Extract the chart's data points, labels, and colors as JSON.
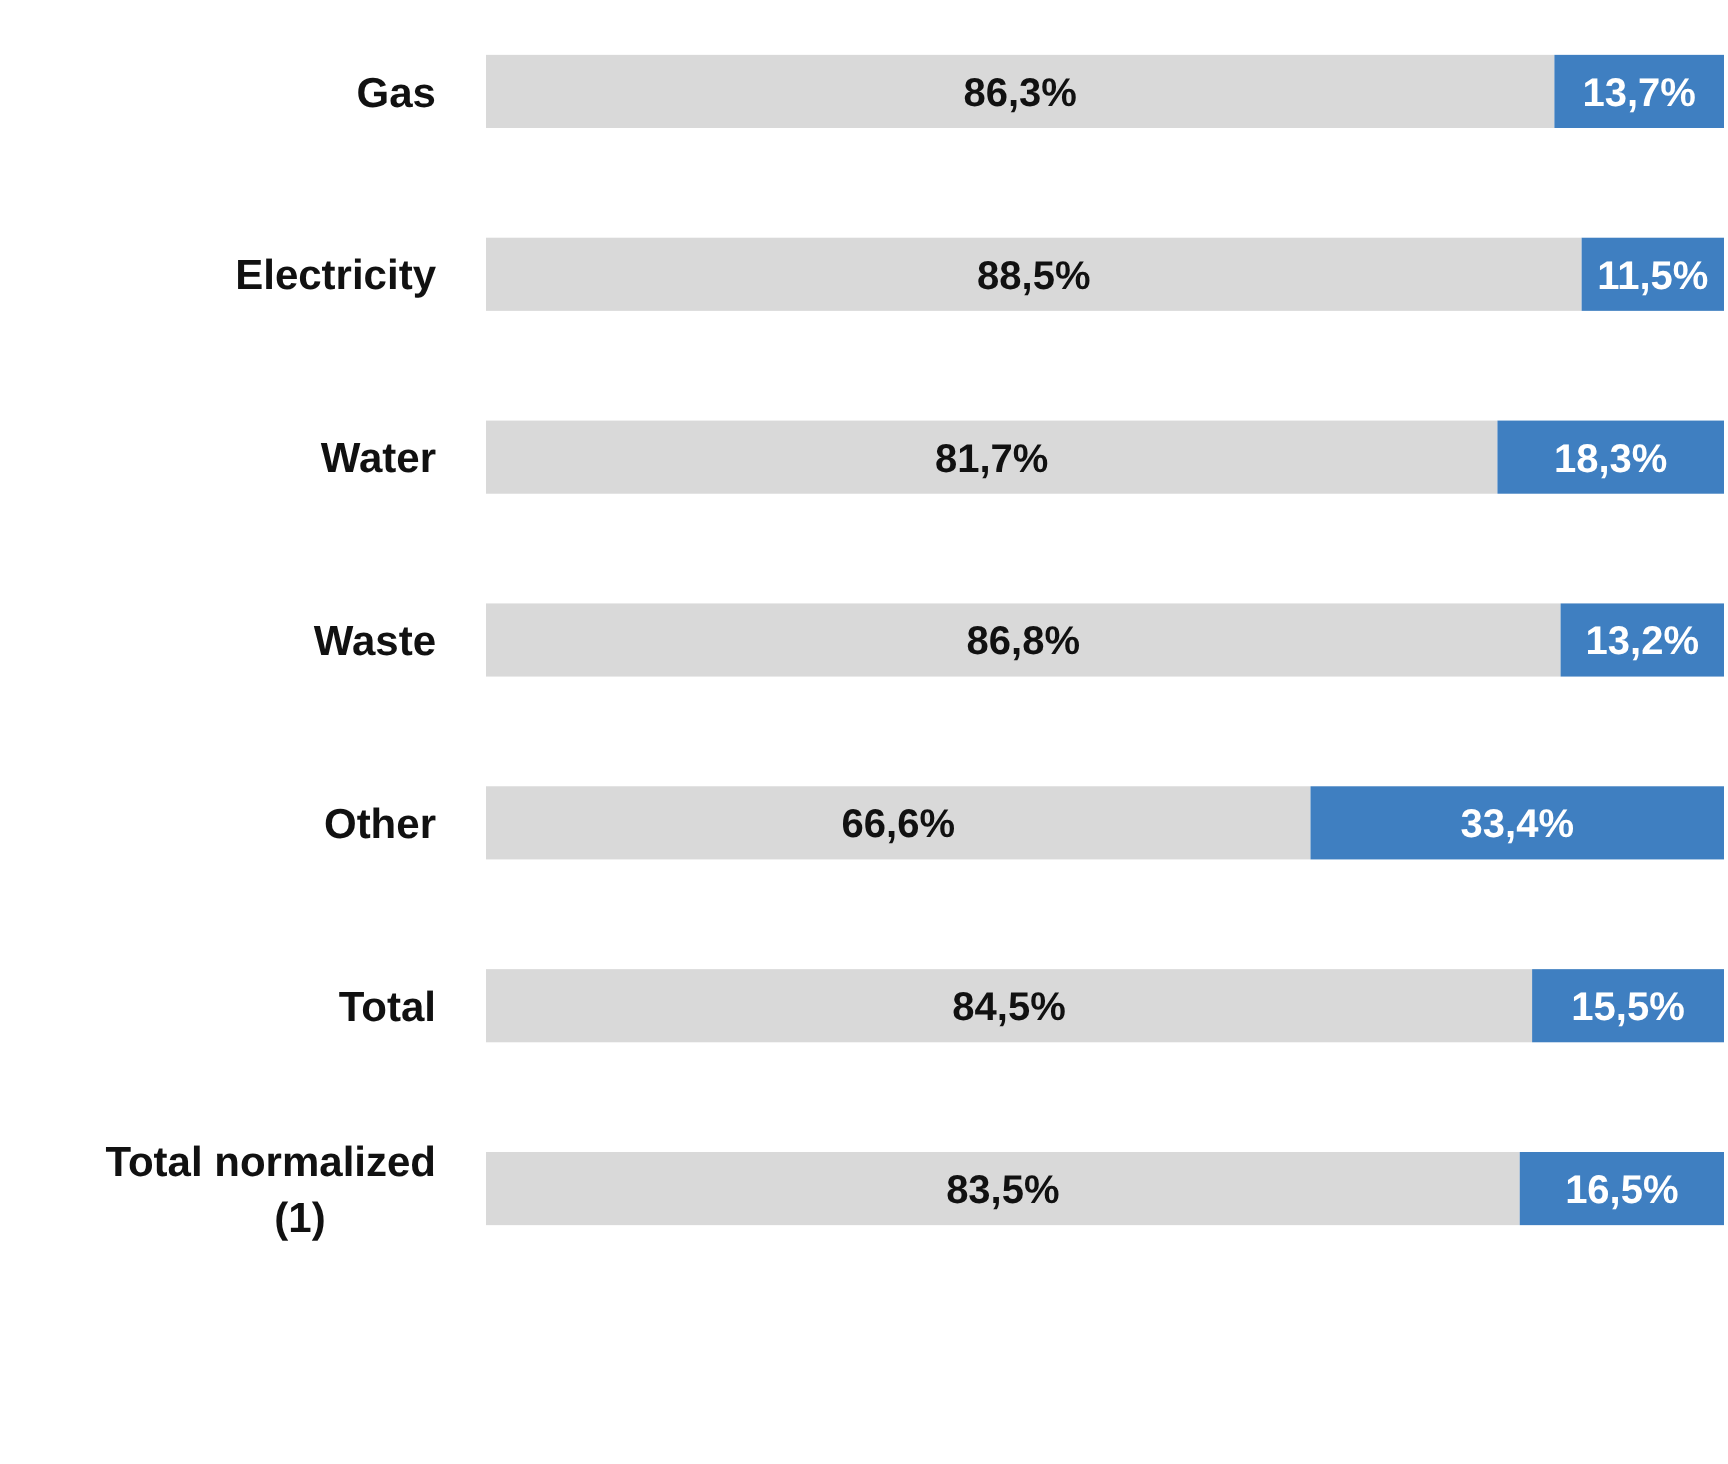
{
  "chart_data": {
    "type": "bar",
    "orientation": "horizontal",
    "stacked": true,
    "categories": [
      "Gas",
      "Electricity",
      "Water",
      "Waste",
      "Other",
      "Total",
      "Total normalized (1)"
    ],
    "series": [
      {
        "color": "#d9d9d9",
        "values": [
          86.3,
          88.5,
          81.7,
          86.8,
          66.6,
          84.5,
          83.5
        ],
        "value_labels": [
          "86,3%",
          "88,5%",
          "81,7%",
          "86,8%",
          "66,6%",
          "84,5%",
          "83,5%"
        ]
      },
      {
        "color": "#3f7fc1",
        "values": [
          13.7,
          11.5,
          18.3,
          13.2,
          33.4,
          15.5,
          16.5
        ],
        "value_labels": [
          "13,7%",
          "11,5%",
          "18,3%",
          "13,2%",
          "33,4%",
          "15,5%",
          "16,5%"
        ]
      }
    ],
    "xlim": [
      0,
      100
    ],
    "tick_labels": "y"
  }
}
